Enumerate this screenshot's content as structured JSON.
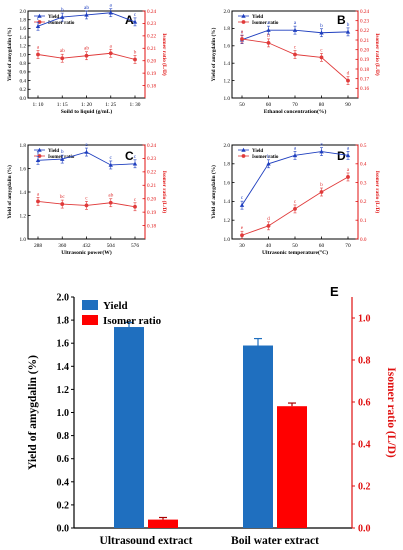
{
  "colors": {
    "yield_line": "#1f3fbf",
    "isomer_line": "#e03a3a",
    "yield_bar": "#1f6fbf",
    "isomer_bar": "#ff0000",
    "red_axis": "#e01010"
  },
  "chart_data": [
    {
      "panel": "A",
      "type": "line",
      "legend": [
        "Yield",
        "Isomer ratio"
      ],
      "x": [
        "1: 10",
        "1: 15",
        "1: 20",
        "1: 25",
        "1: 30"
      ],
      "xlabel": "Soild to liquid (g/mL)",
      "ylabel": "Yield of amygdalin (%)",
      "ylim": [
        0.0,
        2.0
      ],
      "yticks": [
        "0.0",
        "0.2",
        "0.4",
        "0.6",
        "0.8",
        "1.0",
        "1.2",
        "1.4",
        "1.6",
        "1.8",
        "2.0"
      ],
      "y2label": "Isomer ratio (L/D)",
      "y2lim": [
        0.17,
        0.24
      ],
      "y2ticks": [
        "0.18",
        "0.19",
        "0.20",
        "0.21",
        "0.22",
        "0.23",
        "0.24"
      ],
      "series": [
        {
          "name": "Yield",
          "axis": "left",
          "values": [
            1.65,
            1.86,
            1.91,
            1.96,
            1.75
          ],
          "letters": [
            "c",
            "b",
            "ab",
            "a",
            "c"
          ]
        },
        {
          "name": "Isomer ratio",
          "axis": "right",
          "values": [
            0.205,
            0.202,
            0.204,
            0.206,
            0.201
          ],
          "letters": [
            "a",
            "ab",
            "ab",
            "a",
            "b"
          ]
        }
      ]
    },
    {
      "panel": "B",
      "type": "line",
      "legend": [
        "Yield",
        "Isomer ratio"
      ],
      "x": [
        "50",
        "60",
        "70",
        "80",
        "90"
      ],
      "xlabel": "Ethanol concentration(%)",
      "ylabel": "Yield of amygdalin (%)",
      "ylim": [
        1.0,
        2.0
      ],
      "yticks": [
        "1.0",
        "1.2",
        "1.4",
        "1.6",
        "1.8",
        "2.0"
      ],
      "y2label": "Isomer ratio (L/D)",
      "y2lim": [
        0.15,
        0.24
      ],
      "y2ticks": [
        "0.16",
        "0.17",
        "0.18",
        "0.19",
        "0.20",
        "0.21",
        "0.22",
        "0.23",
        "0.24"
      ],
      "series": [
        {
          "name": "Yield",
          "axis": "left",
          "values": [
            1.67,
            1.78,
            1.78,
            1.75,
            1.76
          ],
          "letters": [
            "c",
            "a",
            "a",
            "b",
            "b"
          ]
        },
        {
          "name": "Isomer ratio",
          "axis": "right",
          "values": [
            0.211,
            0.207,
            0.195,
            0.192,
            0.168
          ],
          "letters": [
            "a",
            "b",
            "c",
            "c",
            "d"
          ]
        }
      ]
    },
    {
      "panel": "C",
      "type": "line",
      "legend": [
        "Yield",
        "Isomer ratio"
      ],
      "x": [
        "288",
        "360",
        "432",
        "504",
        "576"
      ],
      "xlabel": "Ultrasonic power(W)",
      "ylabel": "Yield of amygdalin (%)",
      "ylim": [
        1.0,
        1.8
      ],
      "yticks": [
        "1.0",
        "1.2",
        "1.4",
        "1.6",
        "1.8"
      ],
      "y2label": "Isomer ratio (L/D)",
      "y2lim": [
        0.17,
        0.24
      ],
      "y2ticks": [
        "0.18",
        "0.19",
        "0.20",
        "0.21",
        "0.22",
        "0.23",
        "0.24"
      ],
      "series": [
        {
          "name": "Yield",
          "axis": "left",
          "values": [
            1.67,
            1.68,
            1.74,
            1.63,
            1.64
          ],
          "letters": [
            "b",
            "b",
            "a",
            "c",
            "c"
          ]
        },
        {
          "name": "Isomer ratio",
          "axis": "right",
          "values": [
            0.198,
            0.196,
            0.195,
            0.197,
            0.194
          ],
          "letters": [
            "a",
            "bc",
            "c",
            "ab",
            "c"
          ]
        }
      ]
    },
    {
      "panel": "D",
      "type": "line",
      "legend": [
        "Yield",
        "Isomer ratio"
      ],
      "x": [
        "30",
        "40",
        "50",
        "60",
        "70"
      ],
      "xlabel": "Ultrasonic temperature(°C)",
      "ylabel": "Yield of amygdalin (%)",
      "ylim": [
        1.0,
        2.0
      ],
      "yticks": [
        "1.0",
        "1.2",
        "1.4",
        "1.6",
        "1.8",
        "2.0"
      ],
      "y2label": "Isomer ratio (L/D)",
      "y2lim": [
        0.0,
        0.5
      ],
      "y2ticks": [
        "0.0",
        "0.1",
        "0.2",
        "0.3",
        "0.4",
        "0.5"
      ],
      "series": [
        {
          "name": "Yield",
          "axis": "left",
          "values": [
            1.36,
            1.8,
            1.89,
            1.93,
            1.89
          ],
          "letters": [
            "c",
            "b",
            "a",
            "a",
            "a"
          ]
        },
        {
          "name": "Isomer ratio",
          "axis": "right",
          "values": [
            0.02,
            0.07,
            0.16,
            0.25,
            0.33
          ],
          "letters": [
            "e",
            "d",
            "c",
            "b",
            "a"
          ]
        }
      ]
    },
    {
      "panel": "E",
      "type": "bar",
      "legend": [
        "Yield",
        "Isomer ratio"
      ],
      "categories": [
        "Ultrasound extract",
        "Boil water extract"
      ],
      "ylabel": "Yield of amygdalin (%)",
      "ylim": [
        0.0,
        2.0
      ],
      "yticks": [
        "0.0",
        "0.2",
        "0.4",
        "0.6",
        "0.8",
        "1.0",
        "1.2",
        "1.4",
        "1.6",
        "1.8",
        "2.0"
      ],
      "y2label": "Isomer ratio (L/D)",
      "y2lim": [
        0.0,
        1.1
      ],
      "y2ticks": [
        "0.0",
        "0.2",
        "0.4",
        "0.6",
        "0.8",
        "1.0"
      ],
      "series": [
        {
          "name": "Yield",
          "axis": "left",
          "values": [
            1.74,
            1.58
          ],
          "errors": [
            0.04,
            0.06
          ]
        },
        {
          "name": "Isomer ratio",
          "axis": "right",
          "values": [
            0.04,
            0.58
          ],
          "errors": [
            0.01,
            0.015
          ]
        }
      ]
    }
  ]
}
